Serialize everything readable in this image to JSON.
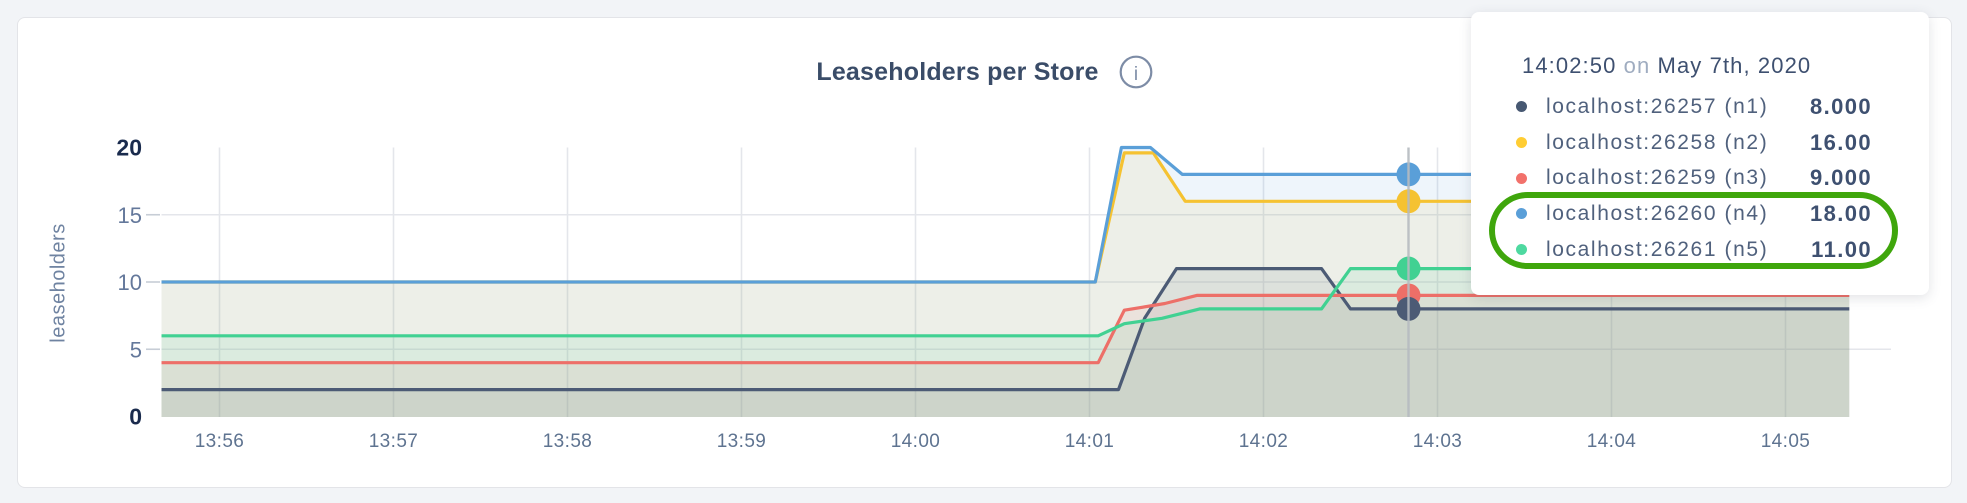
{
  "page": {
    "background": "#F2F4F7"
  },
  "chart_data": {
    "type": "area",
    "title": "Leaseholders per Store",
    "ylabel": "leaseholders",
    "ylim": [
      0,
      20
    ],
    "grid": true,
    "legend_position": "tooltip",
    "y_ticks": [
      {
        "v": 0,
        "label": "0",
        "strong": true
      },
      {
        "v": 5,
        "label": "5",
        "strong": false
      },
      {
        "v": 10,
        "label": "10",
        "strong": false
      },
      {
        "v": 15,
        "label": "15",
        "strong": false
      },
      {
        "v": 20,
        "label": "20",
        "strong": true
      }
    ],
    "x_ticks": [
      {
        "label": "13:56",
        "t": 60
      },
      {
        "label": "13:57",
        "t": 120
      },
      {
        "label": "13:58",
        "t": 180
      },
      {
        "label": "13:59",
        "t": 240
      },
      {
        "label": "14:00",
        "t": 300
      },
      {
        "label": "14:01",
        "t": 360
      },
      {
        "label": "14:02",
        "t": 420
      },
      {
        "label": "14:03",
        "t": 480
      },
      {
        "label": "14:04",
        "t": 540
      },
      {
        "label": "14:05",
        "t": 600
      }
    ],
    "series": [
      {
        "name": "localhost:26257 (n1)",
        "color": "#4C5B75",
        "points": [
          [
            40,
            2
          ],
          [
            370,
            2
          ],
          [
            379,
            7.3
          ],
          [
            390,
            11
          ],
          [
            440,
            11
          ],
          [
            450,
            8
          ],
          [
            622,
            8
          ]
        ]
      },
      {
        "name": "localhost:26258 (n2)",
        "color": "#F5C231",
        "points": [
          [
            40,
            10
          ],
          [
            362,
            10
          ],
          [
            372,
            19.6
          ],
          [
            382,
            19.6
          ],
          [
            393,
            16
          ],
          [
            622,
            16
          ]
        ]
      },
      {
        "name": "localhost:26259 (n3)",
        "color": "#ED6F68",
        "points": [
          [
            40,
            4
          ],
          [
            363,
            4
          ],
          [
            372,
            7.9
          ],
          [
            386,
            8.4
          ],
          [
            397,
            9
          ],
          [
            622,
            9
          ]
        ]
      },
      {
        "name": "localhost:26260 (n4)",
        "color": "#5A9FD8",
        "points": [
          [
            40,
            10
          ],
          [
            362,
            10
          ],
          [
            371,
            20
          ],
          [
            381,
            20
          ],
          [
            392,
            18
          ],
          [
            622,
            18
          ]
        ]
      },
      {
        "name": "localhost:26261 (n5)",
        "color": "#41D192",
        "points": [
          [
            40,
            6
          ],
          [
            363,
            6
          ],
          [
            372,
            6.9
          ],
          [
            385,
            7.3
          ],
          [
            398,
            8
          ],
          [
            440,
            8
          ],
          [
            450,
            11
          ],
          [
            622,
            11
          ]
        ]
      }
    ],
    "hover": {
      "t": 470,
      "values": [
        8,
        16,
        9,
        18,
        11
      ]
    }
  },
  "tooltip": {
    "time": "14:02:50",
    "conjunction": "on",
    "date": "May 7th, 2020",
    "rows": [
      {
        "label": "localhost:26257 (n1)",
        "value": "8.000",
        "color": "#475872"
      },
      {
        "label": "localhost:26258 (n2)",
        "value": "16.00",
        "color": "#FFCD33"
      },
      {
        "label": "localhost:26259 (n3)",
        "value": "9.000",
        "color": "#F2716B"
      },
      {
        "label": "localhost:26260 (n4)",
        "value": "18.00",
        "color": "#5A9FD8"
      },
      {
        "label": "localhost:26261 (n5)",
        "value": "11.00",
        "color": "#4ED9A0"
      }
    ],
    "highlight_rows": [
      3,
      4
    ],
    "highlight_color": "#3FA60C"
  }
}
